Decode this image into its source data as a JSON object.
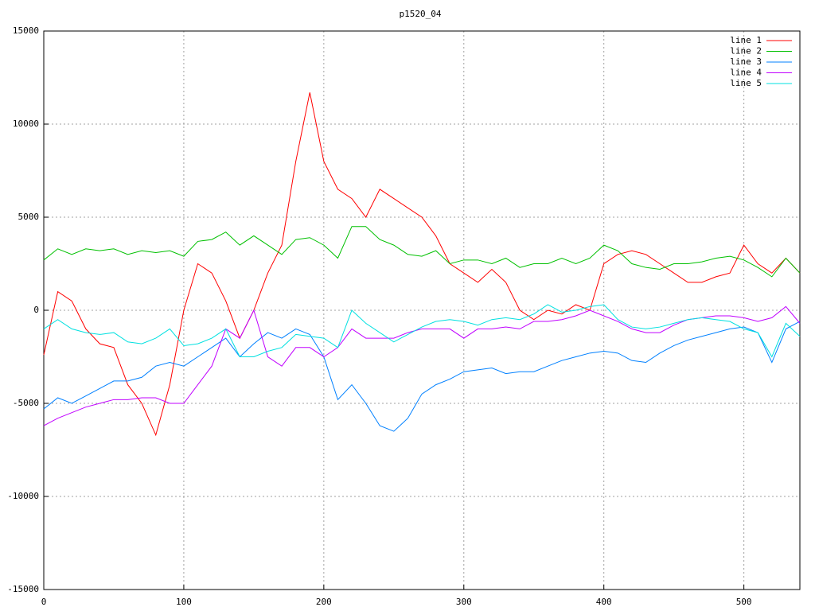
{
  "chart_data": {
    "type": "line",
    "title": "p1520_04",
    "x": [
      0,
      10,
      20,
      30,
      40,
      50,
      60,
      70,
      80,
      90,
      100,
      110,
      120,
      130,
      140,
      150,
      160,
      170,
      180,
      190,
      200,
      210,
      220,
      230,
      240,
      250,
      260,
      270,
      280,
      290,
      300,
      310,
      320,
      330,
      340,
      350,
      360,
      370,
      380,
      390,
      400,
      410,
      420,
      430,
      440,
      450,
      460,
      470,
      480,
      490,
      500,
      510,
      520,
      530,
      540
    ],
    "series": [
      {
        "name": "line 1",
        "color": "#ff0000",
        "values": [
          -2400,
          1000,
          500,
          -1000,
          -1800,
          -2000,
          -4000,
          -5000,
          -6700,
          -4000,
          0,
          2500,
          2000,
          500,
          -1500,
          0,
          2000,
          3500,
          8000,
          11700,
          8000,
          6500,
          6000,
          5000,
          6500,
          6000,
          5500,
          5000,
          4000,
          2500,
          2000,
          1500,
          2200,
          1500,
          0,
          -500,
          0,
          -200,
          300,
          0,
          2500,
          3000,
          3200,
          3000,
          2500,
          2000,
          1500,
          1500,
          1800,
          2000,
          3500,
          2500,
          2000,
          2800,
          2000
        ]
      },
      {
        "name": "line 2",
        "color": "#00c000",
        "values": [
          2700,
          3300,
          3000,
          3300,
          3200,
          3300,
          3000,
          3200,
          3100,
          3200,
          2900,
          3700,
          3800,
          4200,
          3500,
          4000,
          3500,
          3000,
          3800,
          3900,
          3500,
          2800,
          4500,
          4500,
          3800,
          3500,
          3000,
          2900,
          3200,
          2500,
          2700,
          2700,
          2500,
          2800,
          2300,
          2500,
          2500,
          2800,
          2500,
          2800,
          3500,
          3200,
          2500,
          2300,
          2200,
          2500,
          2500,
          2600,
          2800,
          2900,
          2700,
          2300,
          1800,
          2800,
          2000
        ]
      },
      {
        "name": "line 3",
        "color": "#0080ff",
        "values": [
          -5300,
          -4700,
          -5000,
          -4600,
          -4200,
          -3800,
          -3800,
          -3600,
          -3000,
          -2800,
          -3000,
          -2500,
          -2000,
          -1500,
          -2500,
          -1800,
          -1200,
          -1500,
          -1000,
          -1300,
          -2500,
          -4800,
          -4000,
          -5000,
          -6200,
          -6500,
          -5800,
          -4500,
          -4000,
          -3700,
          -3300,
          -3200,
          -3100,
          -3400,
          -3300,
          -3300,
          -3000,
          -2700,
          -2500,
          -2300,
          -2200,
          -2300,
          -2700,
          -2800,
          -2300,
          -1900,
          -1600,
          -1400,
          -1200,
          -1000,
          -900,
          -1200,
          -2800,
          -1000,
          -600
        ]
      },
      {
        "name": "line 4",
        "color": "#c000ff",
        "values": [
          -6200,
          -5800,
          -5500,
          -5200,
          -5000,
          -4800,
          -4800,
          -4700,
          -4700,
          -5000,
          -5000,
          -4000,
          -3000,
          -1000,
          -1500,
          0,
          -2500,
          -3000,
          -2000,
          -2000,
          -2500,
          -2000,
          -1000,
          -1500,
          -1500,
          -1500,
          -1200,
          -1000,
          -1000,
          -1000,
          -1500,
          -1000,
          -1000,
          -900,
          -1000,
          -600,
          -600,
          -500,
          -300,
          0,
          -300,
          -600,
          -1000,
          -1200,
          -1200,
          -800,
          -500,
          -400,
          -300,
          -300,
          -400,
          -600,
          -400,
          200,
          -700
        ]
      },
      {
        "name": "line 5",
        "color": "#00e0e0",
        "values": [
          -1000,
          -500,
          -1000,
          -1200,
          -1300,
          -1200,
          -1700,
          -1800,
          -1500,
          -1000,
          -1900,
          -1800,
          -1500,
          -1000,
          -2500,
          -2500,
          -2200,
          -2000,
          -1300,
          -1400,
          -1500,
          -2000,
          0,
          -700,
          -1200,
          -1700,
          -1300,
          -900,
          -600,
          -500,
          -600,
          -800,
          -500,
          -400,
          -500,
          -200,
          300,
          -100,
          0,
          200,
          300,
          -500,
          -900,
          -1000,
          -900,
          -700,
          -500,
          -400,
          -500,
          -600,
          -1000,
          -1200,
          -2500,
          -700,
          -1400
        ]
      }
    ],
    "xlim": [
      0,
      540
    ],
    "xticks": [
      0,
      100,
      200,
      300,
      400,
      500
    ],
    "ylim": [
      -15000,
      15000
    ],
    "yticks": [
      -15000,
      -10000,
      -5000,
      0,
      5000,
      10000,
      15000
    ],
    "grid": true,
    "legend": "top-right"
  }
}
